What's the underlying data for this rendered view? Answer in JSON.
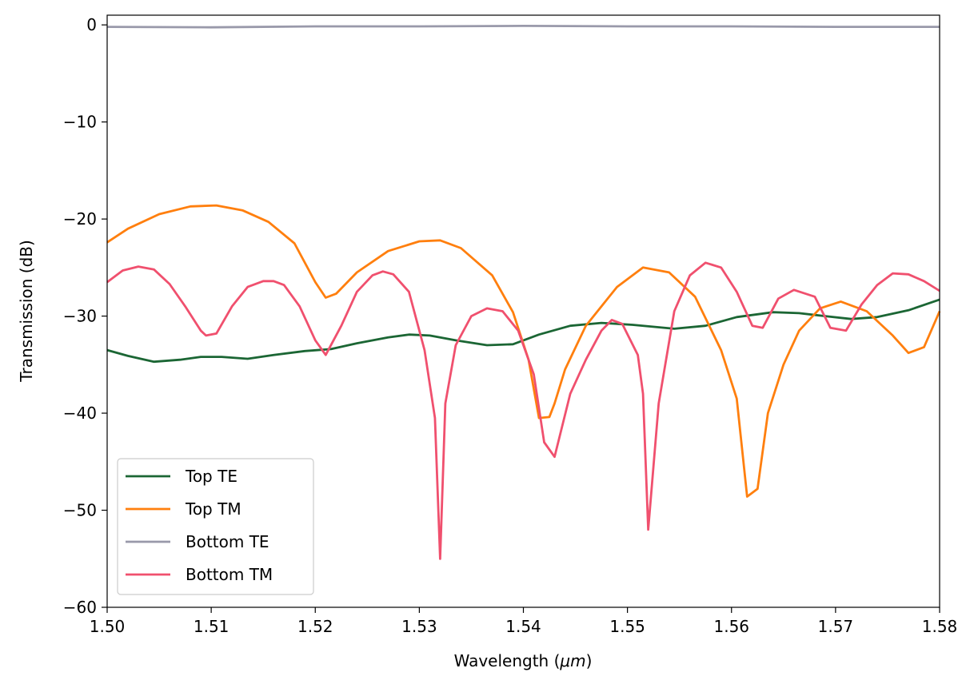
{
  "chart_data": {
    "type": "line",
    "title": "",
    "xlabel_text": "Wavelength (",
    "xlabel_unit": "μm",
    "xlabel_close": ")",
    "ylabel": "Transmission (dB)",
    "xlim": [
      1.5,
      1.58
    ],
    "ylim": [
      -60,
      1
    ],
    "xticks": [
      1.5,
      1.51,
      1.52,
      1.53,
      1.54,
      1.55,
      1.56,
      1.57,
      1.58
    ],
    "xtick_labels": [
      "1.50",
      "1.51",
      "1.52",
      "1.53",
      "1.54",
      "1.55",
      "1.56",
      "1.57",
      "1.58"
    ],
    "yticks": [
      0,
      -10,
      -20,
      -30,
      -40,
      -50,
      -60
    ],
    "ytick_labels": [
      "0",
      "−10",
      "−20",
      "−30",
      "−40",
      "−50",
      "−60"
    ],
    "grid": false,
    "legend_position": "lower-left",
    "series": [
      {
        "name": "Top TE",
        "color": "#1b6634",
        "x": [
          1.5,
          1.502,
          1.5045,
          1.507,
          1.509,
          1.511,
          1.5135,
          1.516,
          1.519,
          1.5215,
          1.524,
          1.527,
          1.529,
          1.531,
          1.5335,
          1.5365,
          1.539,
          1.5415,
          1.5445,
          1.5475,
          1.5505,
          1.5545,
          1.5575,
          1.5605,
          1.564,
          1.5665,
          1.569,
          1.5715,
          1.574,
          1.577,
          1.58
        ],
        "y": [
          -33.5,
          -34.1,
          -34.7,
          -34.5,
          -34.2,
          -34.2,
          -34.4,
          -34.0,
          -33.6,
          -33.4,
          -32.8,
          -32.2,
          -31.9,
          -32.0,
          -32.5,
          -33.0,
          -32.9,
          -31.9,
          -31.0,
          -30.7,
          -30.9,
          -31.3,
          -31.0,
          -30.1,
          -29.6,
          -29.7,
          -30.0,
          -30.3,
          -30.1,
          -29.4,
          -28.3
        ]
      },
      {
        "name": "Top TM",
        "color": "#ff7f0e",
        "x": [
          1.5,
          1.502,
          1.505,
          1.508,
          1.5105,
          1.513,
          1.5155,
          1.518,
          1.52,
          1.521,
          1.522,
          1.524,
          1.527,
          1.53,
          1.532,
          1.534,
          1.537,
          1.539,
          1.5405,
          1.5415,
          1.5425,
          1.543,
          1.544,
          1.546,
          1.549,
          1.5515,
          1.554,
          1.5565,
          1.559,
          1.5605,
          1.5615,
          1.5625,
          1.5635,
          1.565,
          1.5665,
          1.5685,
          1.5705,
          1.573,
          1.5755,
          1.577,
          1.5785,
          1.58
        ],
        "y": [
          -22.4,
          -21.0,
          -19.5,
          -18.7,
          -18.6,
          -19.1,
          -20.3,
          -22.5,
          -26.5,
          -28.1,
          -27.7,
          -25.5,
          -23.3,
          -22.3,
          -22.2,
          -23.0,
          -25.8,
          -29.6,
          -34.5,
          -40.5,
          -40.4,
          -39.0,
          -35.5,
          -31.0,
          -27.0,
          -25.0,
          -25.5,
          -28.0,
          -33.5,
          -38.5,
          -48.6,
          -47.8,
          -40.0,
          -35.0,
          -31.5,
          -29.2,
          -28.5,
          -29.5,
          -32.0,
          -33.8,
          -33.2,
          -29.5
        ]
      },
      {
        "name": "Bottom TE",
        "color": "#9999aa",
        "x": [
          1.5,
          1.51,
          1.52,
          1.53,
          1.54,
          1.55,
          1.56,
          1.57,
          1.58
        ],
        "y": [
          -0.2,
          -0.25,
          -0.15,
          -0.15,
          -0.1,
          -0.15,
          -0.15,
          -0.2,
          -0.2
        ]
      },
      {
        "name": "Bottom TM",
        "color": "#f0506e",
        "x": [
          1.5,
          1.5015,
          1.503,
          1.5045,
          1.506,
          1.5075,
          1.509,
          1.5095,
          1.5105,
          1.512,
          1.5135,
          1.515,
          1.516,
          1.517,
          1.5185,
          1.52,
          1.521,
          1.5225,
          1.524,
          1.5255,
          1.5265,
          1.5275,
          1.529,
          1.5305,
          1.5315,
          1.532,
          1.5325,
          1.5335,
          1.535,
          1.5365,
          1.538,
          1.5395,
          1.541,
          1.542,
          1.543,
          1.5445,
          1.546,
          1.5475,
          1.5485,
          1.5495,
          1.551,
          1.5515,
          1.552,
          1.553,
          1.5545,
          1.556,
          1.5575,
          1.559,
          1.5605,
          1.562,
          1.563,
          1.5645,
          1.566,
          1.568,
          1.5695,
          1.571,
          1.5725,
          1.574,
          1.5755,
          1.577,
          1.5785,
          1.58
        ],
        "y": [
          -26.5,
          -25.3,
          -24.9,
          -25.2,
          -26.7,
          -29.0,
          -31.5,
          -32.0,
          -31.8,
          -29.0,
          -27.0,
          -26.4,
          -26.4,
          -26.8,
          -29.0,
          -32.5,
          -34.0,
          -31.0,
          -27.5,
          -25.8,
          -25.4,
          -25.7,
          -27.5,
          -33.5,
          -40.5,
          -55.0,
          -39.0,
          -33.0,
          -30.0,
          -29.2,
          -29.5,
          -31.5,
          -36.0,
          -43.0,
          -44.5,
          -38.0,
          -34.5,
          -31.5,
          -30.4,
          -30.8,
          -34.0,
          -38.0,
          -52.0,
          -39.0,
          -29.5,
          -25.8,
          -24.5,
          -25.0,
          -27.5,
          -31.0,
          -31.2,
          -28.2,
          -27.3,
          -28.0,
          -31.2,
          -31.5,
          -28.8,
          -26.8,
          -25.6,
          -25.7,
          -26.4,
          -27.4
        ]
      }
    ]
  }
}
